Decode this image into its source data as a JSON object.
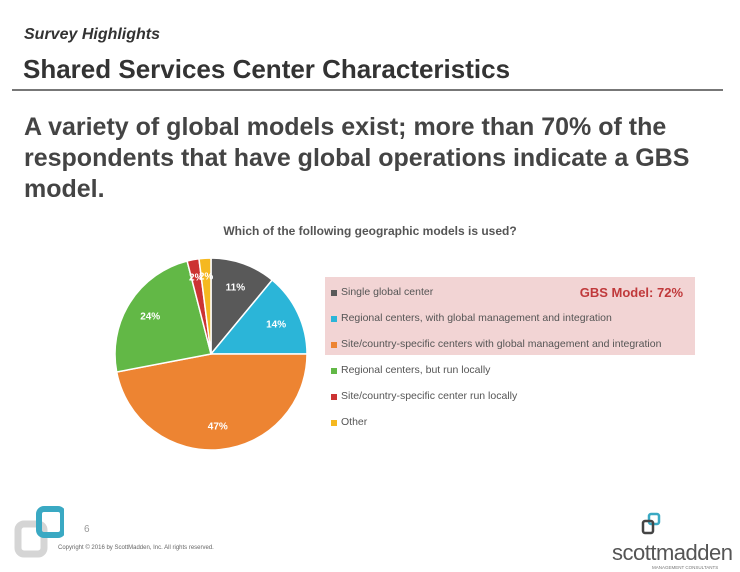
{
  "header": {
    "subtitle": "Survey Highlights",
    "title": "Shared Services Center Characteristics"
  },
  "headline": "A variety of global models exist; more than 70% of the respondents that have global operations indicate a GBS model.",
  "gbs_label": "GBS Model: 72%",
  "chart_data": {
    "type": "pie",
    "title": "Which of the following geographic models is used?",
    "categories": [
      "Single global center",
      "Regional centers, with global management and integration",
      "Site/country-specific centers with global management and integration",
      "Regional centers, but run locally",
      "Site/country-specific center run locally",
      "Other"
    ],
    "values": [
      11,
      14,
      47,
      24,
      2,
      2
    ],
    "labels": [
      "11%",
      "14%",
      "47%",
      "24%",
      "2%",
      "2%"
    ],
    "colors": [
      "#595959",
      "#2bb5d8",
      "#ed8432",
      "#62b846",
      "#cc3333",
      "#f5b820"
    ],
    "legend": "right"
  },
  "footer": {
    "page": "6",
    "copyright": "Copyright © 2016 by ScottMadden, Inc. All rights reserved.",
    "logo": "scottmadden",
    "logo_sub": "MANAGEMENT CONSULTANTS"
  }
}
